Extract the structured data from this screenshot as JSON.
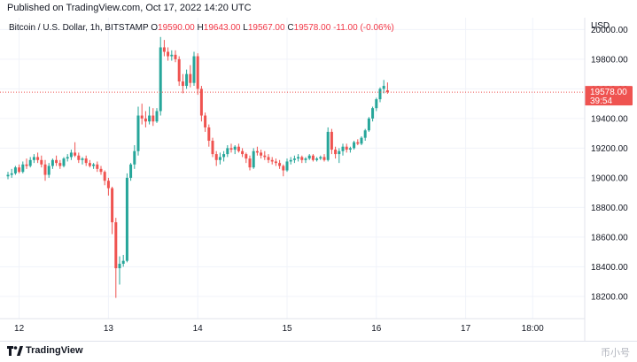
{
  "header": {
    "published": "Published on TradingView.com, Oct 17, 2022 14:20 UTC"
  },
  "legend": {
    "symbol": "Bitcoin / U.S. Dollar, 1h, BITSTAMP",
    "open_label": "O",
    "open": "19590.00",
    "high_label": "H",
    "high": "19643.00",
    "low_label": "L",
    "low": "19567.00",
    "close_label": "C",
    "close": "19578.00",
    "change": "-11.00 (-0.06%)"
  },
  "price_tag": {
    "price": "19578.00",
    "countdown": "39:54"
  },
  "footer": {
    "logo_text": "TradingView",
    "watermark": "币小号"
  },
  "colors": {
    "up": "#26a69a",
    "down": "#ef5350",
    "grid": "#f0f3fa",
    "price_line": "#ef5350"
  },
  "chart_data": {
    "type": "candlestick",
    "title": "Bitcoin / U.S. Dollar, 1h, BITSTAMP",
    "y_axis_unit": "USD",
    "yticks": [
      18200,
      18400,
      18600,
      18800,
      19000,
      19200,
      19400,
      19600,
      19800,
      20000
    ],
    "ytick_labels": [
      "18200.00",
      "18400.00",
      "18600.00",
      "18800.00",
      "19000.00",
      "19200.00",
      "19400.00",
      "19600.00",
      "19800.00",
      "20000.00"
    ],
    "ylim": [
      18050,
      20080
    ],
    "xtick_labels": [
      {
        "label": "12",
        "index": 3
      },
      {
        "label": "13",
        "index": 27
      },
      {
        "label": "14",
        "index": 51
      },
      {
        "label": "15",
        "index": 75
      },
      {
        "label": "16",
        "index": 99
      },
      {
        "label": "17",
        "index": 123
      },
      {
        "label": "18:00",
        "index": 141
      }
    ],
    "last_price": 19578,
    "candles": [
      [
        19010,
        19040,
        18990,
        19020
      ],
      [
        19020,
        19060,
        19000,
        19030
      ],
      [
        19030,
        19080,
        19020,
        19070
      ],
      [
        19070,
        19090,
        19030,
        19040
      ],
      [
        19040,
        19110,
        19030,
        19090
      ],
      [
        19090,
        19130,
        19060,
        19080
      ],
      [
        19080,
        19140,
        19070,
        19120
      ],
      [
        19120,
        19160,
        19100,
        19140
      ],
      [
        19140,
        19170,
        19100,
        19120
      ],
      [
        19120,
        19150,
        19070,
        19090
      ],
      [
        19090,
        19120,
        18980,
        19020
      ],
      [
        19020,
        19100,
        19000,
        19080
      ],
      [
        19080,
        19130,
        19060,
        19120
      ],
      [
        19120,
        19150,
        19080,
        19100
      ],
      [
        19100,
        19120,
        19060,
        19080
      ],
      [
        19080,
        19140,
        19070,
        19130
      ],
      [
        19130,
        19160,
        19110,
        19140
      ],
      [
        19140,
        19190,
        19120,
        19170
      ],
      [
        19170,
        19240,
        19140,
        19150
      ],
      [
        19150,
        19170,
        19100,
        19120
      ],
      [
        19120,
        19140,
        19090,
        19130
      ],
      [
        19130,
        19150,
        19080,
        19100
      ],
      [
        19100,
        19120,
        19070,
        19080
      ],
      [
        19080,
        19100,
        19060,
        19090
      ],
      [
        19090,
        19110,
        19040,
        19060
      ],
      [
        19060,
        19080,
        19020,
        19040
      ],
      [
        19040,
        19050,
        18950,
        18980
      ],
      [
        18980,
        19000,
        18880,
        18930
      ],
      [
        18930,
        18940,
        18620,
        18700
      ],
      [
        18700,
        18730,
        18190,
        18390
      ],
      [
        18390,
        18470,
        18280,
        18420
      ],
      [
        18420,
        18480,
        18400,
        18440
      ],
      [
        18440,
        19030,
        18430,
        19000
      ],
      [
        19000,
        19100,
        18980,
        19090
      ],
      [
        19090,
        19220,
        19060,
        19180
      ],
      [
        19180,
        19480,
        19150,
        19420
      ],
      [
        19420,
        19500,
        19360,
        19400
      ],
      [
        19400,
        19450,
        19340,
        19380
      ],
      [
        19380,
        19480,
        19360,
        19420
      ],
      [
        19420,
        19470,
        19350,
        19380
      ],
      [
        19380,
        19470,
        19370,
        19450
      ],
      [
        19450,
        19950,
        19420,
        19880
      ],
      [
        19880,
        19930,
        19820,
        19850
      ],
      [
        19850,
        19880,
        19790,
        19820
      ],
      [
        19820,
        19860,
        19790,
        19830
      ],
      [
        19830,
        19860,
        19780,
        19800
      ],
      [
        19800,
        19820,
        19620,
        19650
      ],
      [
        19650,
        19700,
        19570,
        19620
      ],
      [
        19620,
        19730,
        19600,
        19700
      ],
      [
        19700,
        19760,
        19610,
        19640
      ],
      [
        19640,
        19850,
        19620,
        19820
      ],
      [
        19820,
        19840,
        19560,
        19600
      ],
      [
        19600,
        19620,
        19380,
        19420
      ],
      [
        19420,
        19440,
        19310,
        19340
      ],
      [
        19340,
        19360,
        19210,
        19250
      ],
      [
        19250,
        19270,
        19140,
        19160
      ],
      [
        19160,
        19180,
        19080,
        19120
      ],
      [
        19120,
        19170,
        19090,
        19140
      ],
      [
        19140,
        19180,
        19110,
        19160
      ],
      [
        19160,
        19220,
        19140,
        19200
      ],
      [
        19200,
        19230,
        19170,
        19190
      ],
      [
        19190,
        19220,
        19160,
        19210
      ],
      [
        19210,
        19230,
        19170,
        19180
      ],
      [
        19180,
        19200,
        19140,
        19160
      ],
      [
        19160,
        19170,
        19100,
        19130
      ],
      [
        19130,
        19150,
        19050,
        19070
      ],
      [
        19070,
        19200,
        19060,
        19180
      ],
      [
        19180,
        19210,
        19150,
        19170
      ],
      [
        19170,
        19190,
        19130,
        19150
      ],
      [
        19150,
        19180,
        19120,
        19140
      ],
      [
        19140,
        19160,
        19100,
        19120
      ],
      [
        19120,
        19140,
        19090,
        19110
      ],
      [
        19110,
        19130,
        19080,
        19100
      ],
      [
        19100,
        19120,
        19060,
        19080
      ],
      [
        19080,
        19090,
        19010,
        19050
      ],
      [
        19050,
        19130,
        19040,
        19110
      ],
      [
        19110,
        19140,
        19090,
        19120
      ],
      [
        19120,
        19150,
        19100,
        19130
      ],
      [
        19130,
        19160,
        19110,
        19140
      ],
      [
        19140,
        19150,
        19100,
        19120
      ],
      [
        19120,
        19140,
        19100,
        19130
      ],
      [
        19130,
        19160,
        19120,
        19150
      ],
      [
        19150,
        19160,
        19110,
        19120
      ],
      [
        19120,
        19140,
        19110,
        19130
      ],
      [
        19130,
        19150,
        19120,
        19140
      ],
      [
        19140,
        19160,
        19110,
        19120
      ],
      [
        19120,
        19340,
        19110,
        19310
      ],
      [
        19310,
        19330,
        19160,
        19190
      ],
      [
        19190,
        19210,
        19130,
        19160
      ],
      [
        19160,
        19200,
        19100,
        19180
      ],
      [
        19180,
        19230,
        19150,
        19210
      ],
      [
        19210,
        19230,
        19170,
        19190
      ],
      [
        19190,
        19210,
        19170,
        19200
      ],
      [
        19200,
        19250,
        19190,
        19240
      ],
      [
        19240,
        19260,
        19220,
        19230
      ],
      [
        19230,
        19280,
        19220,
        19270
      ],
      [
        19270,
        19330,
        19250,
        19320
      ],
      [
        19320,
        19410,
        19310,
        19400
      ],
      [
        19400,
        19480,
        19380,
        19470
      ],
      [
        19470,
        19540,
        19450,
        19530
      ],
      [
        19530,
        19610,
        19510,
        19600
      ],
      [
        19600,
        19660,
        19570,
        19620
      ],
      [
        19590,
        19643,
        19567,
        19578
      ]
    ]
  }
}
